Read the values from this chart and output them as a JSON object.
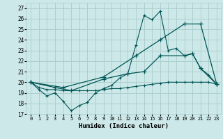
{
  "xlabel": "Humidex (Indice chaleur)",
  "background_color": "#cce8e8",
  "grid_color": "#aacccc",
  "line_color": "#005555",
  "xlim": [
    -0.5,
    23.5
  ],
  "ylim": [
    17,
    27.5
  ],
  "yticks": [
    17,
    18,
    19,
    20,
    21,
    22,
    23,
    24,
    25,
    26,
    27
  ],
  "xticks": [
    0,
    1,
    2,
    3,
    4,
    5,
    6,
    7,
    8,
    9,
    10,
    11,
    12,
    13,
    14,
    15,
    16,
    17,
    18,
    19,
    20,
    21,
    22,
    23
  ],
  "series": [
    {
      "x": [
        0,
        1,
        2,
        3,
        4,
        5,
        6,
        7,
        8,
        9,
        10,
        11,
        12,
        13,
        14,
        15,
        16,
        17,
        18,
        19,
        20,
        21,
        22,
        23
      ],
      "y": [
        20,
        19.3,
        18.7,
        19.0,
        18.2,
        17.3,
        17.8,
        18.1,
        19.0,
        19.4,
        19.7,
        20.4,
        20.8,
        23.5,
        26.3,
        25.9,
        26.7,
        23.0,
        23.2,
        22.5,
        22.7,
        21.3,
        20.7,
        19.8
      ]
    },
    {
      "x": [
        0,
        1,
        2,
        3,
        4,
        5,
        6,
        7,
        8,
        9,
        10,
        11,
        12,
        13,
        14,
        15,
        16,
        17,
        18,
        19,
        20,
        21,
        22,
        23
      ],
      "y": [
        20,
        19.5,
        19.3,
        19.3,
        19.2,
        19.2,
        19.2,
        19.2,
        19.2,
        19.3,
        19.4,
        19.4,
        19.5,
        19.6,
        19.7,
        19.8,
        19.9,
        20.0,
        20.0,
        20.0,
        20.0,
        20.0,
        20.0,
        19.8
      ]
    },
    {
      "x": [
        0,
        4,
        9,
        13,
        16,
        19,
        21,
        23
      ],
      "y": [
        20,
        19.5,
        20.5,
        22.5,
        24.0,
        25.5,
        25.5,
        19.8
      ]
    },
    {
      "x": [
        0,
        3,
        5,
        9,
        12,
        14,
        16,
        19,
        20,
        21,
        23
      ],
      "y": [
        20,
        19.5,
        19.2,
        20.3,
        20.8,
        21.0,
        22.5,
        22.5,
        22.7,
        21.3,
        19.8
      ]
    }
  ]
}
